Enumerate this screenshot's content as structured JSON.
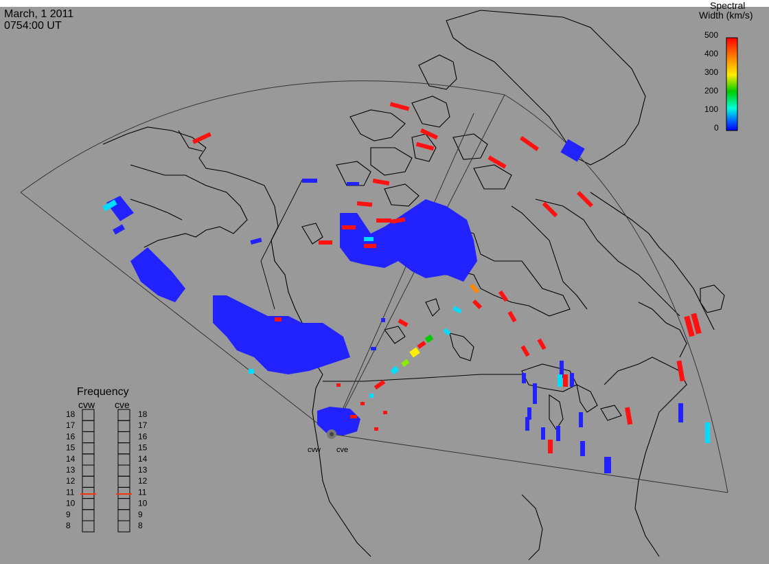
{
  "header": {
    "date": "March, 1 2011",
    "time": "0754:00 UT"
  },
  "colorbar": {
    "title_line1": "Spectral",
    "title_line2": "Width (km/s)",
    "ticks": [
      "500",
      "400",
      "300",
      "200",
      "100",
      "0"
    ],
    "stops": [
      "#ff0000",
      "#ff8800",
      "#ffee00",
      "#00cc00",
      "#00ffdd",
      "#0077ff",
      "#0000ff"
    ]
  },
  "frequency_panel": {
    "title": "Frequency",
    "radars": [
      {
        "name": "cvw",
        "value_mhz": 10.9
      },
      {
        "name": "cve",
        "value_mhz": 10.9
      }
    ],
    "scale": [
      "18",
      "17",
      "16",
      "15",
      "14",
      "13",
      "12",
      "11",
      "10",
      "9",
      "8"
    ],
    "indicator_color": "#ff3300"
  },
  "radar_sites": [
    {
      "label": "cvw"
    },
    {
      "label": "cve"
    }
  ],
  "colors": {
    "background": "#999999",
    "coastline": "#000000",
    "fov": "#333333"
  }
}
